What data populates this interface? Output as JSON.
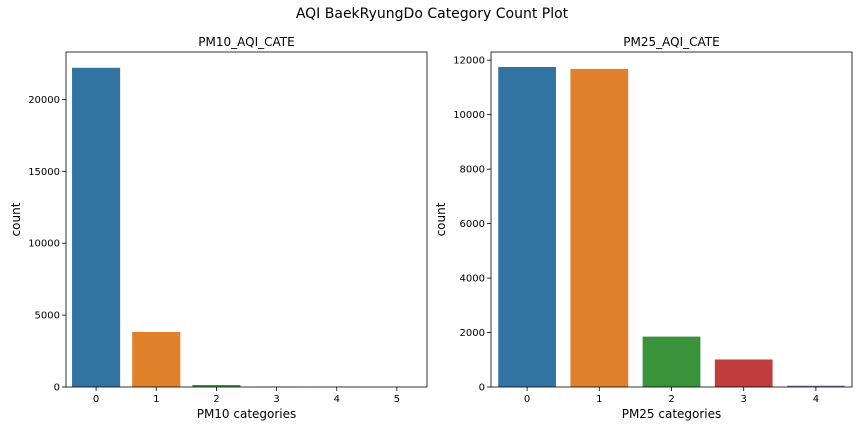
{
  "figure": {
    "title": "AQI BaekRyungDo Category Count Plot"
  },
  "chart_data": [
    {
      "type": "bar",
      "title": "PM10_AQI_CATE",
      "xlabel": "PM10 categories",
      "ylabel": "count",
      "categories": [
        "0",
        "1",
        "2",
        "3",
        "4",
        "5"
      ],
      "values": [
        22200,
        3830,
        140,
        10,
        5,
        3
      ],
      "colors": [
        "#3274a1",
        "#e1812c",
        "#3a923a",
        "#c03d3e",
        "#9372b2",
        "#845b53"
      ],
      "ylim": [
        0,
        23300
      ],
      "yticks": [
        0,
        5000,
        10000,
        15000,
        20000
      ],
      "grid": false
    },
    {
      "type": "bar",
      "title": "PM25_AQI_CATE",
      "xlabel": "PM25 categories",
      "ylabel": "count",
      "categories": [
        "0",
        "1",
        "2",
        "3",
        "4"
      ],
      "values": [
        11750,
        11680,
        1850,
        1010,
        50
      ],
      "colors": [
        "#3274a1",
        "#e1812c",
        "#3a923a",
        "#c03d3e",
        "#9372b2"
      ],
      "ylim": [
        0,
        12300
      ],
      "yticks": [
        0,
        2000,
        4000,
        6000,
        8000,
        10000,
        12000
      ],
      "grid": false
    }
  ]
}
